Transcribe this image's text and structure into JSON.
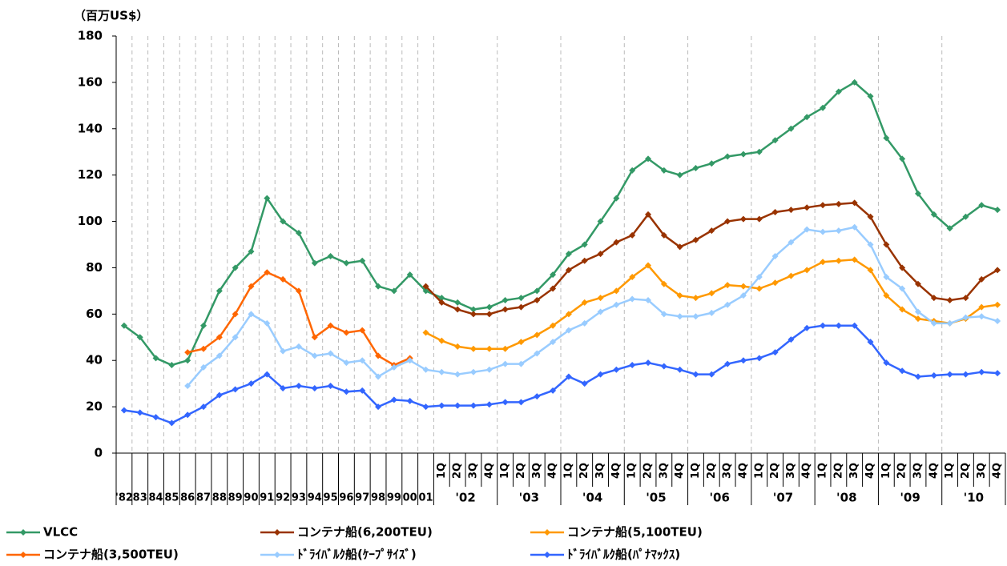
{
  "chart_data": {
    "type": "line",
    "ylabel": "（百万US$）",
    "categories": [
      "'82",
      "83",
      "84",
      "85",
      "86",
      "87",
      "88",
      "89",
      "90",
      "91",
      "92",
      "93",
      "94",
      "95",
      "96",
      "97",
      "98",
      "99",
      "00",
      "01",
      "1Q",
      "2Q",
      "3Q",
      "4Q",
      "1Q",
      "2Q",
      "3Q",
      "4Q",
      "1Q",
      "2Q",
      "3Q",
      "4Q",
      "1Q",
      "2Q",
      "3Q",
      "4Q",
      "1Q",
      "2Q",
      "3Q",
      "4Q",
      "1Q",
      "2Q",
      "3Q",
      "4Q",
      "1Q",
      "2Q",
      "3Q",
      "4Q",
      "1Q",
      "2Q",
      "3Q",
      "4Q",
      "1Q",
      "2Q",
      "3Q",
      "4Q"
    ],
    "year_groups": [
      "'02",
      "'03",
      "'04",
      "'05",
      "'06",
      "'07",
      "'08",
      "'09",
      "'10"
    ],
    "ylim": [
      0,
      180
    ],
    "yticks": [
      0,
      20,
      40,
      60,
      80,
      100,
      120,
      140,
      160,
      180
    ],
    "grid": true,
    "series": [
      {
        "name": "VLCC",
        "color": "#339966",
        "values": [
          55,
          50,
          41,
          38,
          40,
          55,
          70,
          80,
          87,
          110,
          100,
          95,
          82,
          85,
          82,
          83,
          72,
          70,
          77,
          70,
          67,
          65,
          62,
          63,
          66,
          67,
          70,
          77,
          86,
          90,
          100,
          110,
          122,
          127,
          122,
          120,
          123,
          125,
          128,
          129,
          130,
          135,
          140,
          145,
          149,
          156,
          160,
          154,
          136,
          127,
          112,
          103,
          97,
          102,
          107,
          105
        ]
      },
      {
        "name": "コンテナ船(6,200TEU)",
        "color": "#993300",
        "values": [
          null,
          null,
          null,
          null,
          null,
          null,
          null,
          null,
          null,
          null,
          null,
          null,
          null,
          null,
          null,
          null,
          null,
          null,
          null,
          72,
          65,
          62,
          60,
          60,
          62,
          63,
          66,
          71,
          79,
          83,
          86,
          91,
          94,
          103,
          94,
          89,
          92,
          96,
          100,
          101,
          101,
          104,
          105,
          106,
          107,
          107.5,
          108,
          102,
          90,
          80,
          73,
          67,
          66,
          67,
          75,
          79
        ]
      },
      {
        "name": "コンテナ船(5,100TEU)",
        "color": "#ff9900",
        "values": [
          null,
          null,
          null,
          null,
          null,
          null,
          null,
          null,
          null,
          null,
          null,
          null,
          null,
          null,
          null,
          null,
          null,
          null,
          null,
          52,
          48.5,
          46,
          45,
          45,
          45,
          48,
          51,
          55,
          60,
          65,
          67,
          70,
          76,
          81,
          73,
          68,
          67,
          69,
          72.5,
          72,
          71,
          73.5,
          76.5,
          79,
          82.5,
          83,
          83.5,
          79,
          68,
          62,
          58,
          57,
          56,
          58,
          63,
          64
        ]
      },
      {
        "name": "コンテナ船(3,500TEU)",
        "color": "#ff6600",
        "values": [
          null,
          null,
          null,
          null,
          43.5,
          45,
          50,
          60,
          72,
          78,
          75,
          70,
          50,
          55,
          52,
          53,
          42,
          38,
          41,
          null,
          null,
          null,
          null,
          null,
          null,
          null,
          null,
          null,
          null,
          null,
          null,
          null,
          null,
          null,
          null,
          null,
          null,
          null,
          null,
          null,
          null,
          null,
          null,
          null,
          null,
          null,
          null,
          null,
          null,
          null,
          null,
          null,
          null,
          null,
          null,
          null
        ]
      },
      {
        "name": "ﾄﾞﾗｲﾊﾞﾙｸ船(ｹｰﾌﾟｻｲｽﾞ)",
        "color": "#99ccff",
        "values": [
          null,
          null,
          null,
          null,
          29,
          37,
          42,
          50,
          60,
          56,
          44,
          46,
          42,
          43,
          39,
          40,
          33,
          37,
          40,
          36,
          35,
          34,
          35,
          36,
          38.5,
          38.5,
          43,
          48,
          53,
          56,
          61,
          64,
          66.5,
          66,
          60,
          59,
          59,
          60.5,
          64,
          68,
          76,
          85,
          91,
          96.5,
          95.5,
          96,
          97.5,
          90,
          76,
          71,
          61,
          56,
          56,
          58.5,
          59,
          57
        ]
      },
      {
        "name": "ﾄﾞﾗｲﾊﾞﾙｸ船(ﾊﾟﾅﾏｯｸｽ)",
        "color": "#3366ff",
        "values": [
          18.5,
          17.5,
          15.5,
          13,
          16.5,
          20,
          25,
          27.5,
          30,
          34,
          28,
          29,
          28,
          29,
          26.5,
          27,
          20,
          23,
          22.5,
          20,
          20.5,
          20.5,
          20.5,
          21,
          22,
          22,
          24.5,
          27,
          33,
          30,
          34,
          36,
          38,
          39,
          37.5,
          36,
          34,
          34,
          38.5,
          40,
          41,
          43.5,
          49,
          54,
          55,
          55,
          55,
          48,
          39,
          35.5,
          33,
          33.5,
          34,
          34,
          35,
          34.5
        ]
      }
    ]
  }
}
